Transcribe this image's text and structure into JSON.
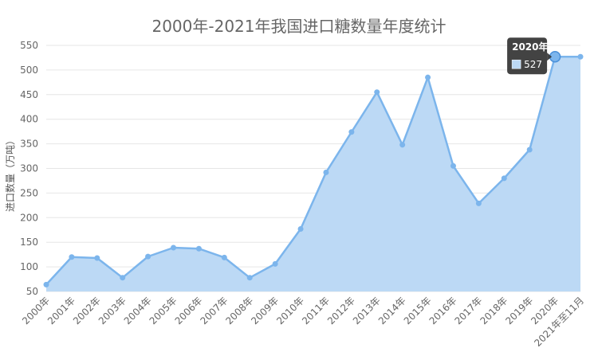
{
  "chart_data": {
    "type": "area",
    "title": "2000年-2021年我国进口糖数量年度统计",
    "ylabel": "进口数量（万吨）",
    "xlabel": "",
    "ylim": [
      50,
      550
    ],
    "yticks": [
      50,
      100,
      150,
      200,
      250,
      300,
      350,
      400,
      450,
      500,
      550
    ],
    "grid": true,
    "categories": [
      "2000年",
      "2001年",
      "2002年",
      "2003年",
      "2004年",
      "2005年",
      "2006年",
      "2007年",
      "2008年",
      "2009年",
      "2010年",
      "2011年",
      "2012年",
      "2013年",
      "2014年",
      "2015年",
      "2016年",
      "2017年",
      "2018年",
      "2019年",
      "2020年",
      "2021年至11月"
    ],
    "values": [
      64,
      120,
      118,
      78,
      121,
      139,
      137,
      119,
      78,
      106,
      177,
      292,
      374,
      455,
      348,
      485,
      305,
      229,
      280,
      338,
      527,
      527
    ],
    "series_color": "#7cb5ec",
    "fill_color": "#bcd9f5",
    "tooltip": {
      "title": "2020年",
      "value": "527",
      "index": 20
    }
  }
}
